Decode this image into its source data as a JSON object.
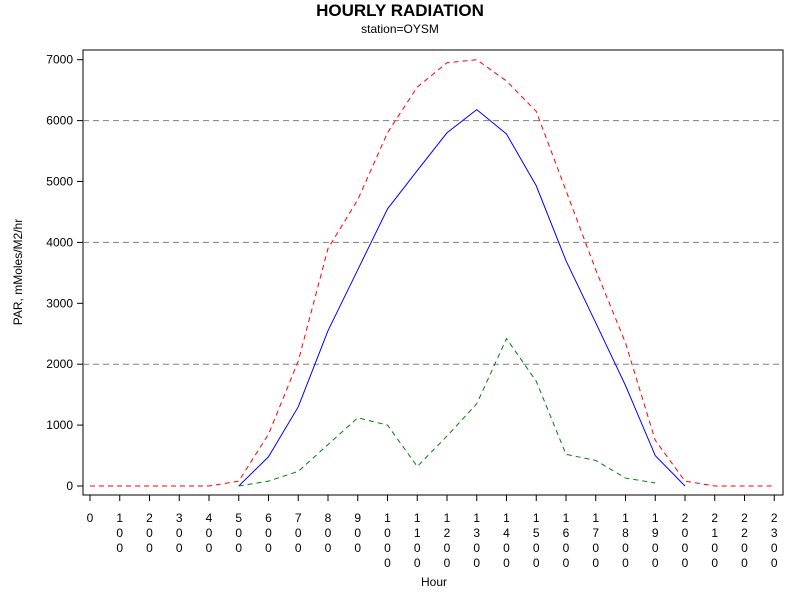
{
  "chart_data": {
    "type": "line",
    "title": "HOURLY RADIATION",
    "subtitle": "station=OYSM",
    "xlabel": "Hour",
    "ylabel": "PAR, mMoles/M2/hr",
    "ylim": [
      0,
      7000
    ],
    "yticks": [
      0,
      1000,
      2000,
      3000,
      4000,
      5000,
      6000,
      7000
    ],
    "x": [
      0,
      100,
      200,
      300,
      400,
      500,
      600,
      700,
      800,
      900,
      1000,
      1100,
      1200,
      1300,
      1400,
      1500,
      1600,
      1700,
      1800,
      1900,
      2000,
      2100,
      2200,
      2300
    ],
    "x_tick_labels": [
      "0",
      "100",
      "200",
      "300",
      "400",
      "500",
      "600",
      "700",
      "800",
      "900",
      "1000",
      "1100",
      "1200",
      "1300",
      "1400",
      "1500",
      "1600",
      "1700",
      "1800",
      "1900",
      "2000",
      "2100",
      "2200",
      "2300"
    ],
    "gridlines_y": [
      2000,
      4000,
      6000
    ],
    "grid": "horizontal dashed at 2000 intervals",
    "series": [
      {
        "color": "#ff0000",
        "style": "dashed",
        "values": [
          0,
          0,
          0,
          0,
          0,
          80,
          850,
          2050,
          3900,
          4700,
          5800,
          6550,
          6950,
          7000,
          6650,
          6150,
          4850,
          3550,
          2350,
          750,
          80,
          0,
          0,
          0
        ]
      },
      {
        "color": "#0000ff",
        "style": "solid",
        "values": [
          null,
          null,
          null,
          null,
          null,
          0,
          480,
          1300,
          2550,
          3550,
          4550,
          5180,
          5800,
          6180,
          5780,
          4930,
          3700,
          2680,
          1650,
          500,
          0,
          null,
          null,
          null
        ]
      },
      {
        "color": "#008000",
        "style": "dashed",
        "values": [
          null,
          null,
          null,
          null,
          null,
          0,
          80,
          240,
          680,
          1120,
          1000,
          320,
          820,
          1350,
          2420,
          1720,
          520,
          420,
          130,
          50,
          null,
          null,
          null,
          null
        ]
      }
    ]
  }
}
